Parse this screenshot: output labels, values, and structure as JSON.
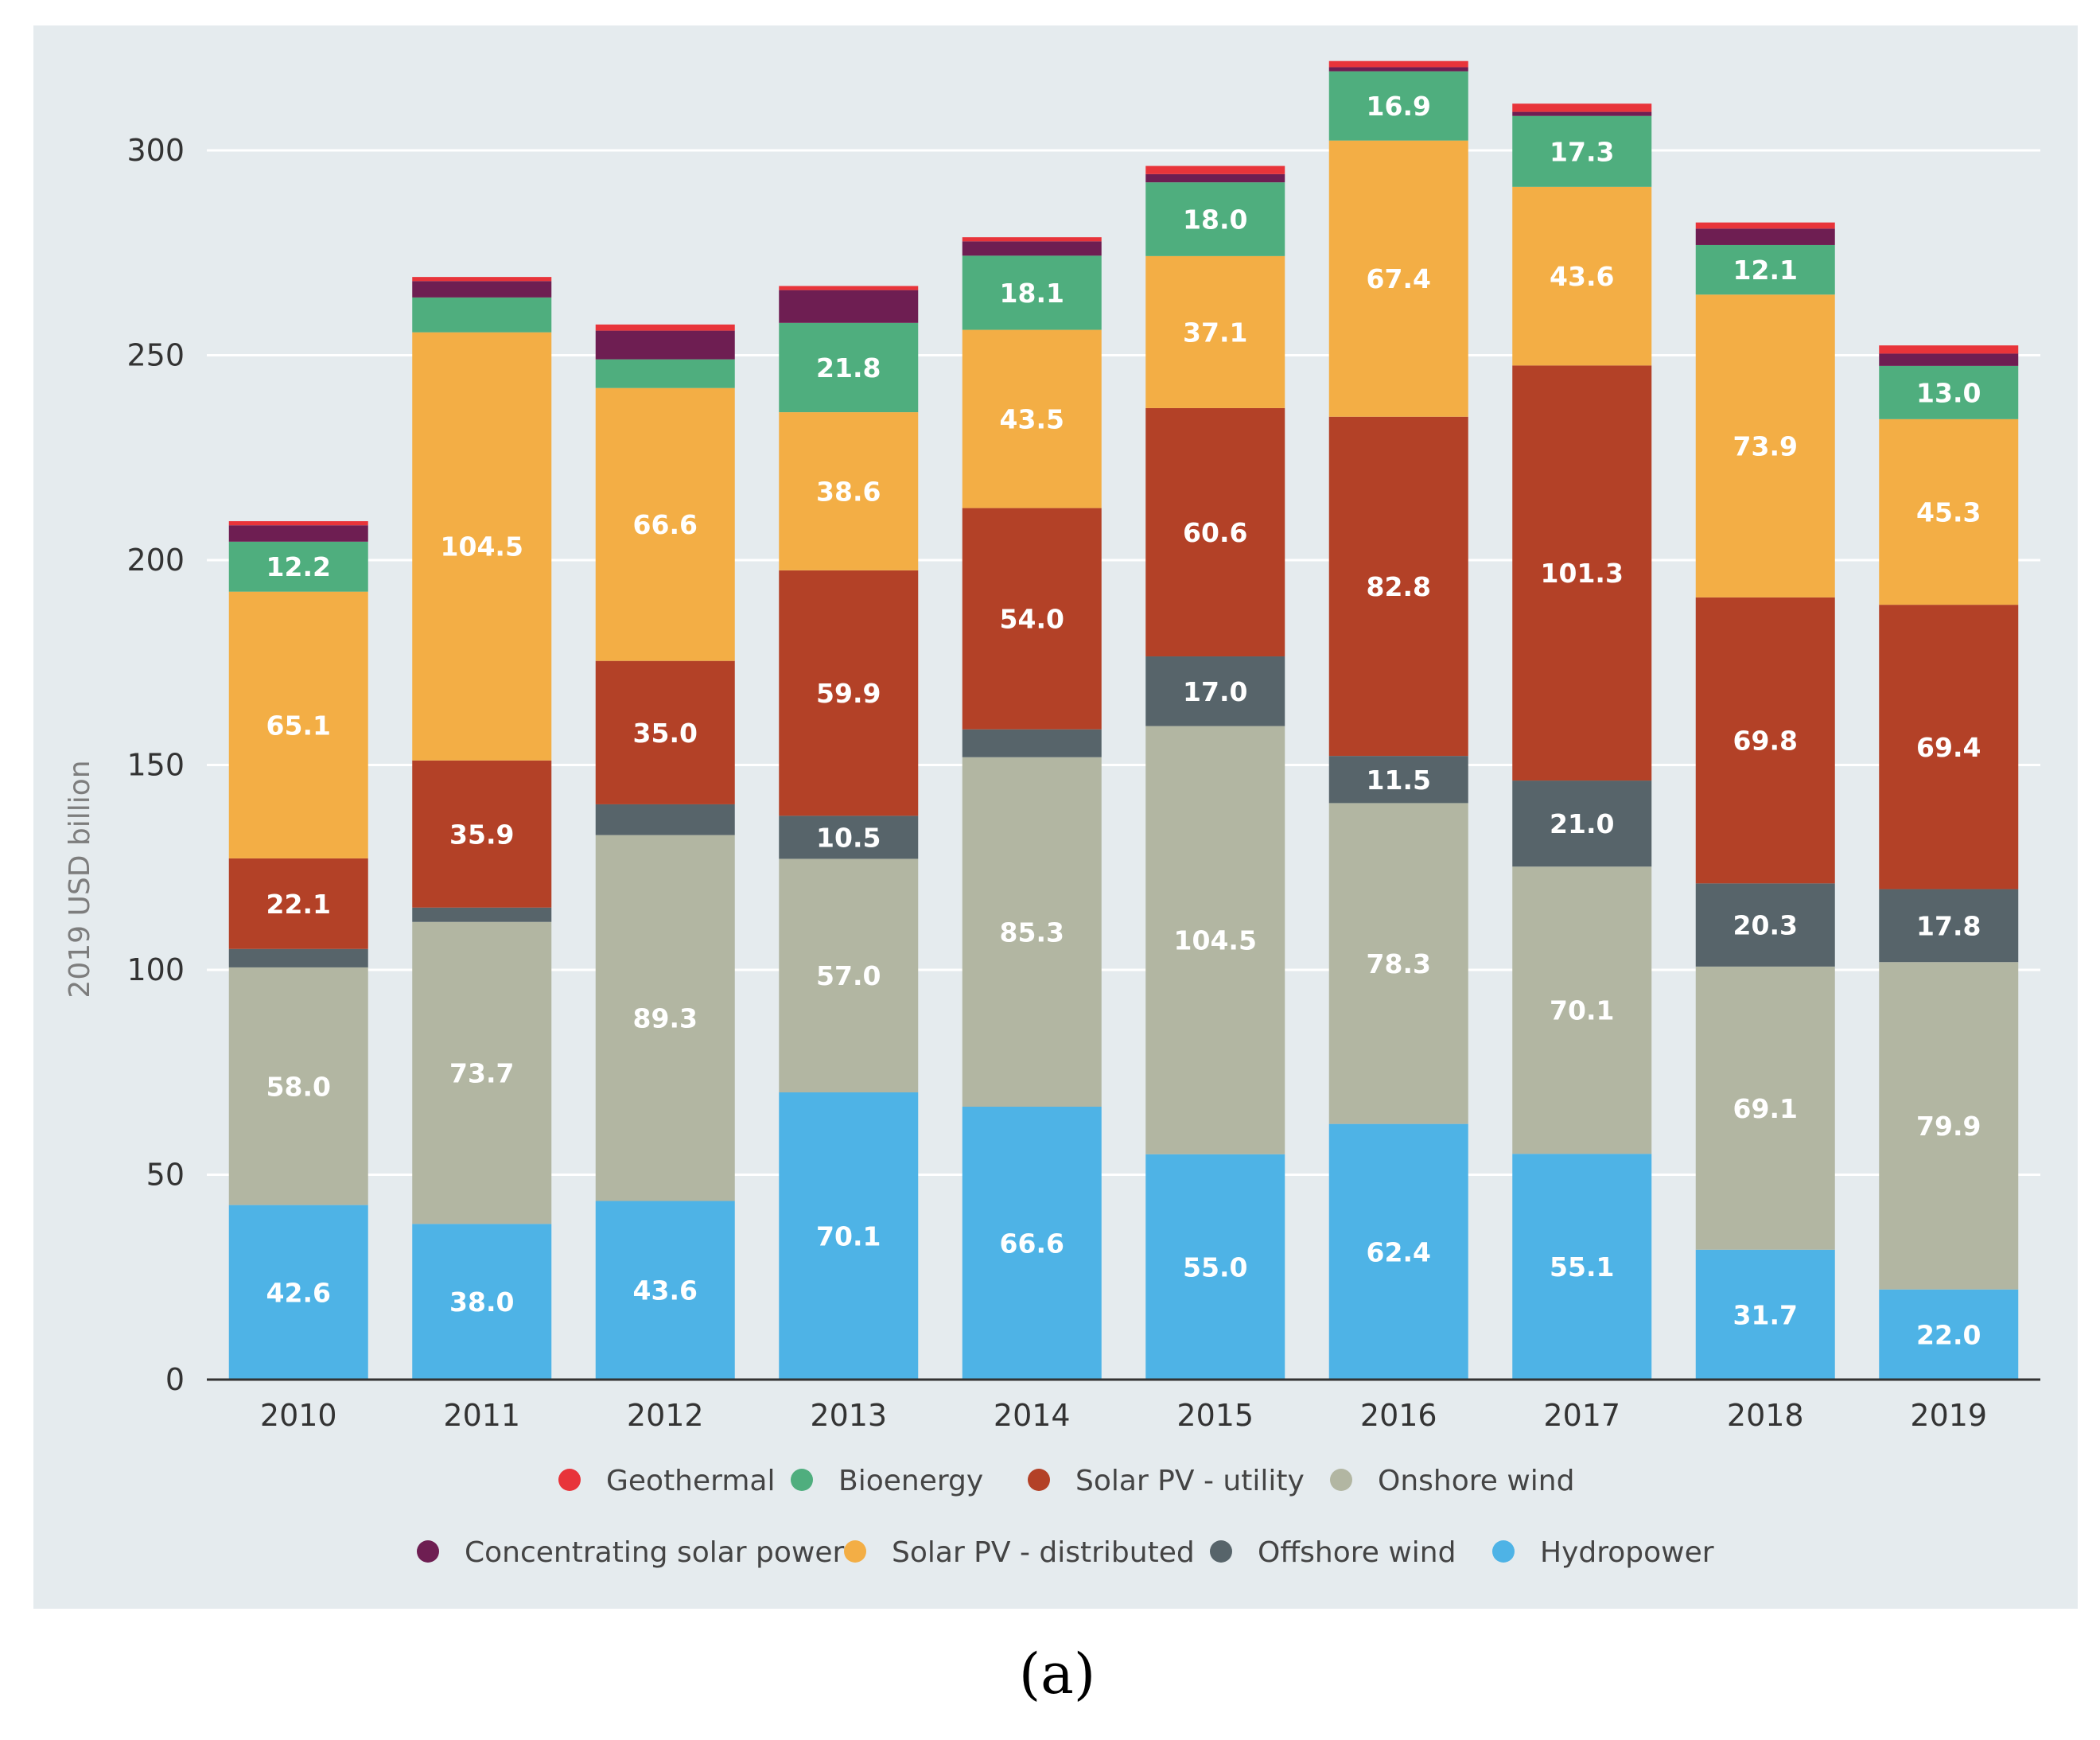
{
  "chart_data": {
    "type": "bar",
    "stacked": true,
    "title": "",
    "xlabel": "",
    "ylabel": "2019 USD billion",
    "ylim": [
      0,
      320
    ],
    "yticks": [
      0,
      50,
      100,
      150,
      200,
      250,
      300
    ],
    "grid": true,
    "legend_position": "bottom",
    "caption": "(a)",
    "categories": [
      "2010",
      "2011",
      "2012",
      "2013",
      "2014",
      "2015",
      "2016",
      "2017",
      "2018",
      "2019"
    ],
    "series": [
      {
        "name": "Hydropower",
        "color": "#4eb3e6",
        "values": [
          42.6,
          38.0,
          43.6,
          70.1,
          66.6,
          55.0,
          62.4,
          55.1,
          31.7,
          22.0
        ],
        "labels": [
          "42.6",
          "38.0",
          "43.6",
          "70.1",
          "66.6",
          "55.0",
          "62.4",
          "55.1",
          "31.7",
          "22.0"
        ]
      },
      {
        "name": "Onshore wind",
        "color": "#b2b6a2",
        "values": [
          58.0,
          73.7,
          89.3,
          57.0,
          85.3,
          104.5,
          78.3,
          70.1,
          69.1,
          79.9
        ],
        "labels": [
          "58.0",
          "73.7",
          "89.3",
          "57.0",
          "85.3",
          "104.5",
          "78.3",
          "70.1",
          "69.1",
          "79.9"
        ]
      },
      {
        "name": "Offshore wind",
        "color": "#57646a",
        "values": [
          4.5,
          3.5,
          7.5,
          10.5,
          6.8,
          17.0,
          11.5,
          21.0,
          20.3,
          17.8
        ],
        "labels": [
          "",
          "",
          "",
          "10.5",
          "",
          "17.0",
          "11.5",
          "21.0",
          "20.3",
          "17.8"
        ]
      },
      {
        "name": "Solar PV - utility",
        "color": "#b34127",
        "values": [
          22.1,
          35.9,
          35.0,
          59.9,
          54.0,
          60.6,
          82.8,
          101.3,
          69.8,
          69.4
        ],
        "labels": [
          "22.1",
          "35.9",
          "35.0",
          "59.9",
          "54.0",
          "60.6",
          "82.8",
          "101.3",
          "69.8",
          "69.4"
        ]
      },
      {
        "name": "Solar PV - distributed",
        "color": "#f3ae45",
        "values": [
          65.1,
          104.5,
          66.6,
          38.6,
          43.5,
          37.1,
          67.4,
          43.6,
          73.9,
          45.3
        ],
        "labels": [
          "65.1",
          "104.5",
          "66.6",
          "38.6",
          "43.5",
          "37.1",
          "67.4",
          "43.6",
          "73.9",
          "45.3"
        ]
      },
      {
        "name": "Bioenergy",
        "color": "#4fae7e",
        "values": [
          12.2,
          8.5,
          7.0,
          21.8,
          18.1,
          18.0,
          16.9,
          17.3,
          12.1,
          13.0
        ],
        "labels": [
          "12.2",
          "",
          "",
          "21.8",
          "18.1",
          "18.0",
          "16.9",
          "17.3",
          "12.1",
          "13.0"
        ]
      },
      {
        "name": "Concentrating solar power",
        "color": "#6e1e52",
        "values": [
          4.0,
          4.0,
          7.0,
          8.0,
          3.5,
          2.0,
          1.0,
          1.0,
          4.0,
          3.0
        ],
        "labels": [
          "",
          "",
          "",
          "",
          "",
          "",
          "",
          "",
          "",
          ""
        ]
      },
      {
        "name": "Geothermal",
        "color": "#e8343a",
        "values": [
          1.0,
          1.0,
          1.5,
          1.0,
          1.0,
          2.0,
          1.5,
          2.0,
          1.5,
          2.0
        ],
        "labels": [
          "",
          "",
          "",
          "",
          "",
          "",
          "",
          "",
          "",
          ""
        ]
      }
    ],
    "legend_rows": [
      [
        "Geothermal",
        "Bioenergy",
        "Solar PV - utility",
        "Onshore wind"
      ],
      [
        "Concentrating solar power",
        "Solar PV - distributed",
        "Offshore wind",
        "Hydropower"
      ]
    ]
  }
}
